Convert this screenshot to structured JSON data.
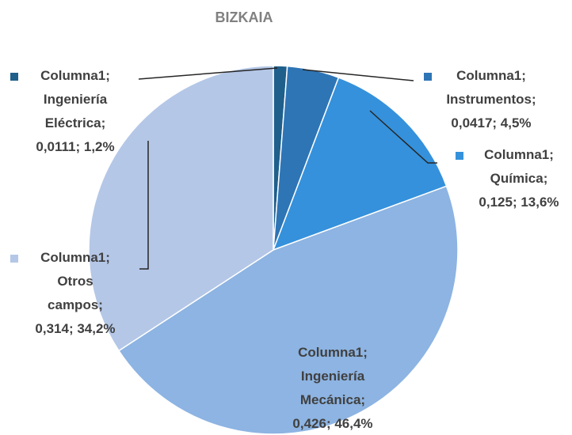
{
  "chart_data": {
    "type": "pie",
    "title": "BIZKAIA",
    "series": [
      {
        "name": "Columna1",
        "categories": [
          "Ingeniería Eléctrica",
          "Instrumentos",
          "Química",
          "Ingeniería Mecánica",
          "Otros campos"
        ],
        "values": [
          0.0111,
          0.0417,
          0.125,
          0.426,
          0.314
        ],
        "colors": [
          "#1f5f8b",
          "#2e75b6",
          "#3591db",
          "#8db4e2",
          "#b4c7e7"
        ],
        "value_labels": [
          [
            "Columna1;",
            "Ingeniería",
            "Eléctrica;",
            "0,0111; 1,2%"
          ],
          [
            "Columna1;",
            "Instrumentos;",
            "0,0417; 4,5%"
          ],
          [
            "Columna1;",
            "Química;",
            "0,125; 13,6%"
          ],
          [
            "Columna1;",
            "Ingeniería",
            "Mecánica;",
            "0,426; 46,4%"
          ],
          [
            "Columna1;",
            "Otros",
            "campos;",
            "0,314; 34,2%"
          ]
        ]
      }
    ]
  }
}
